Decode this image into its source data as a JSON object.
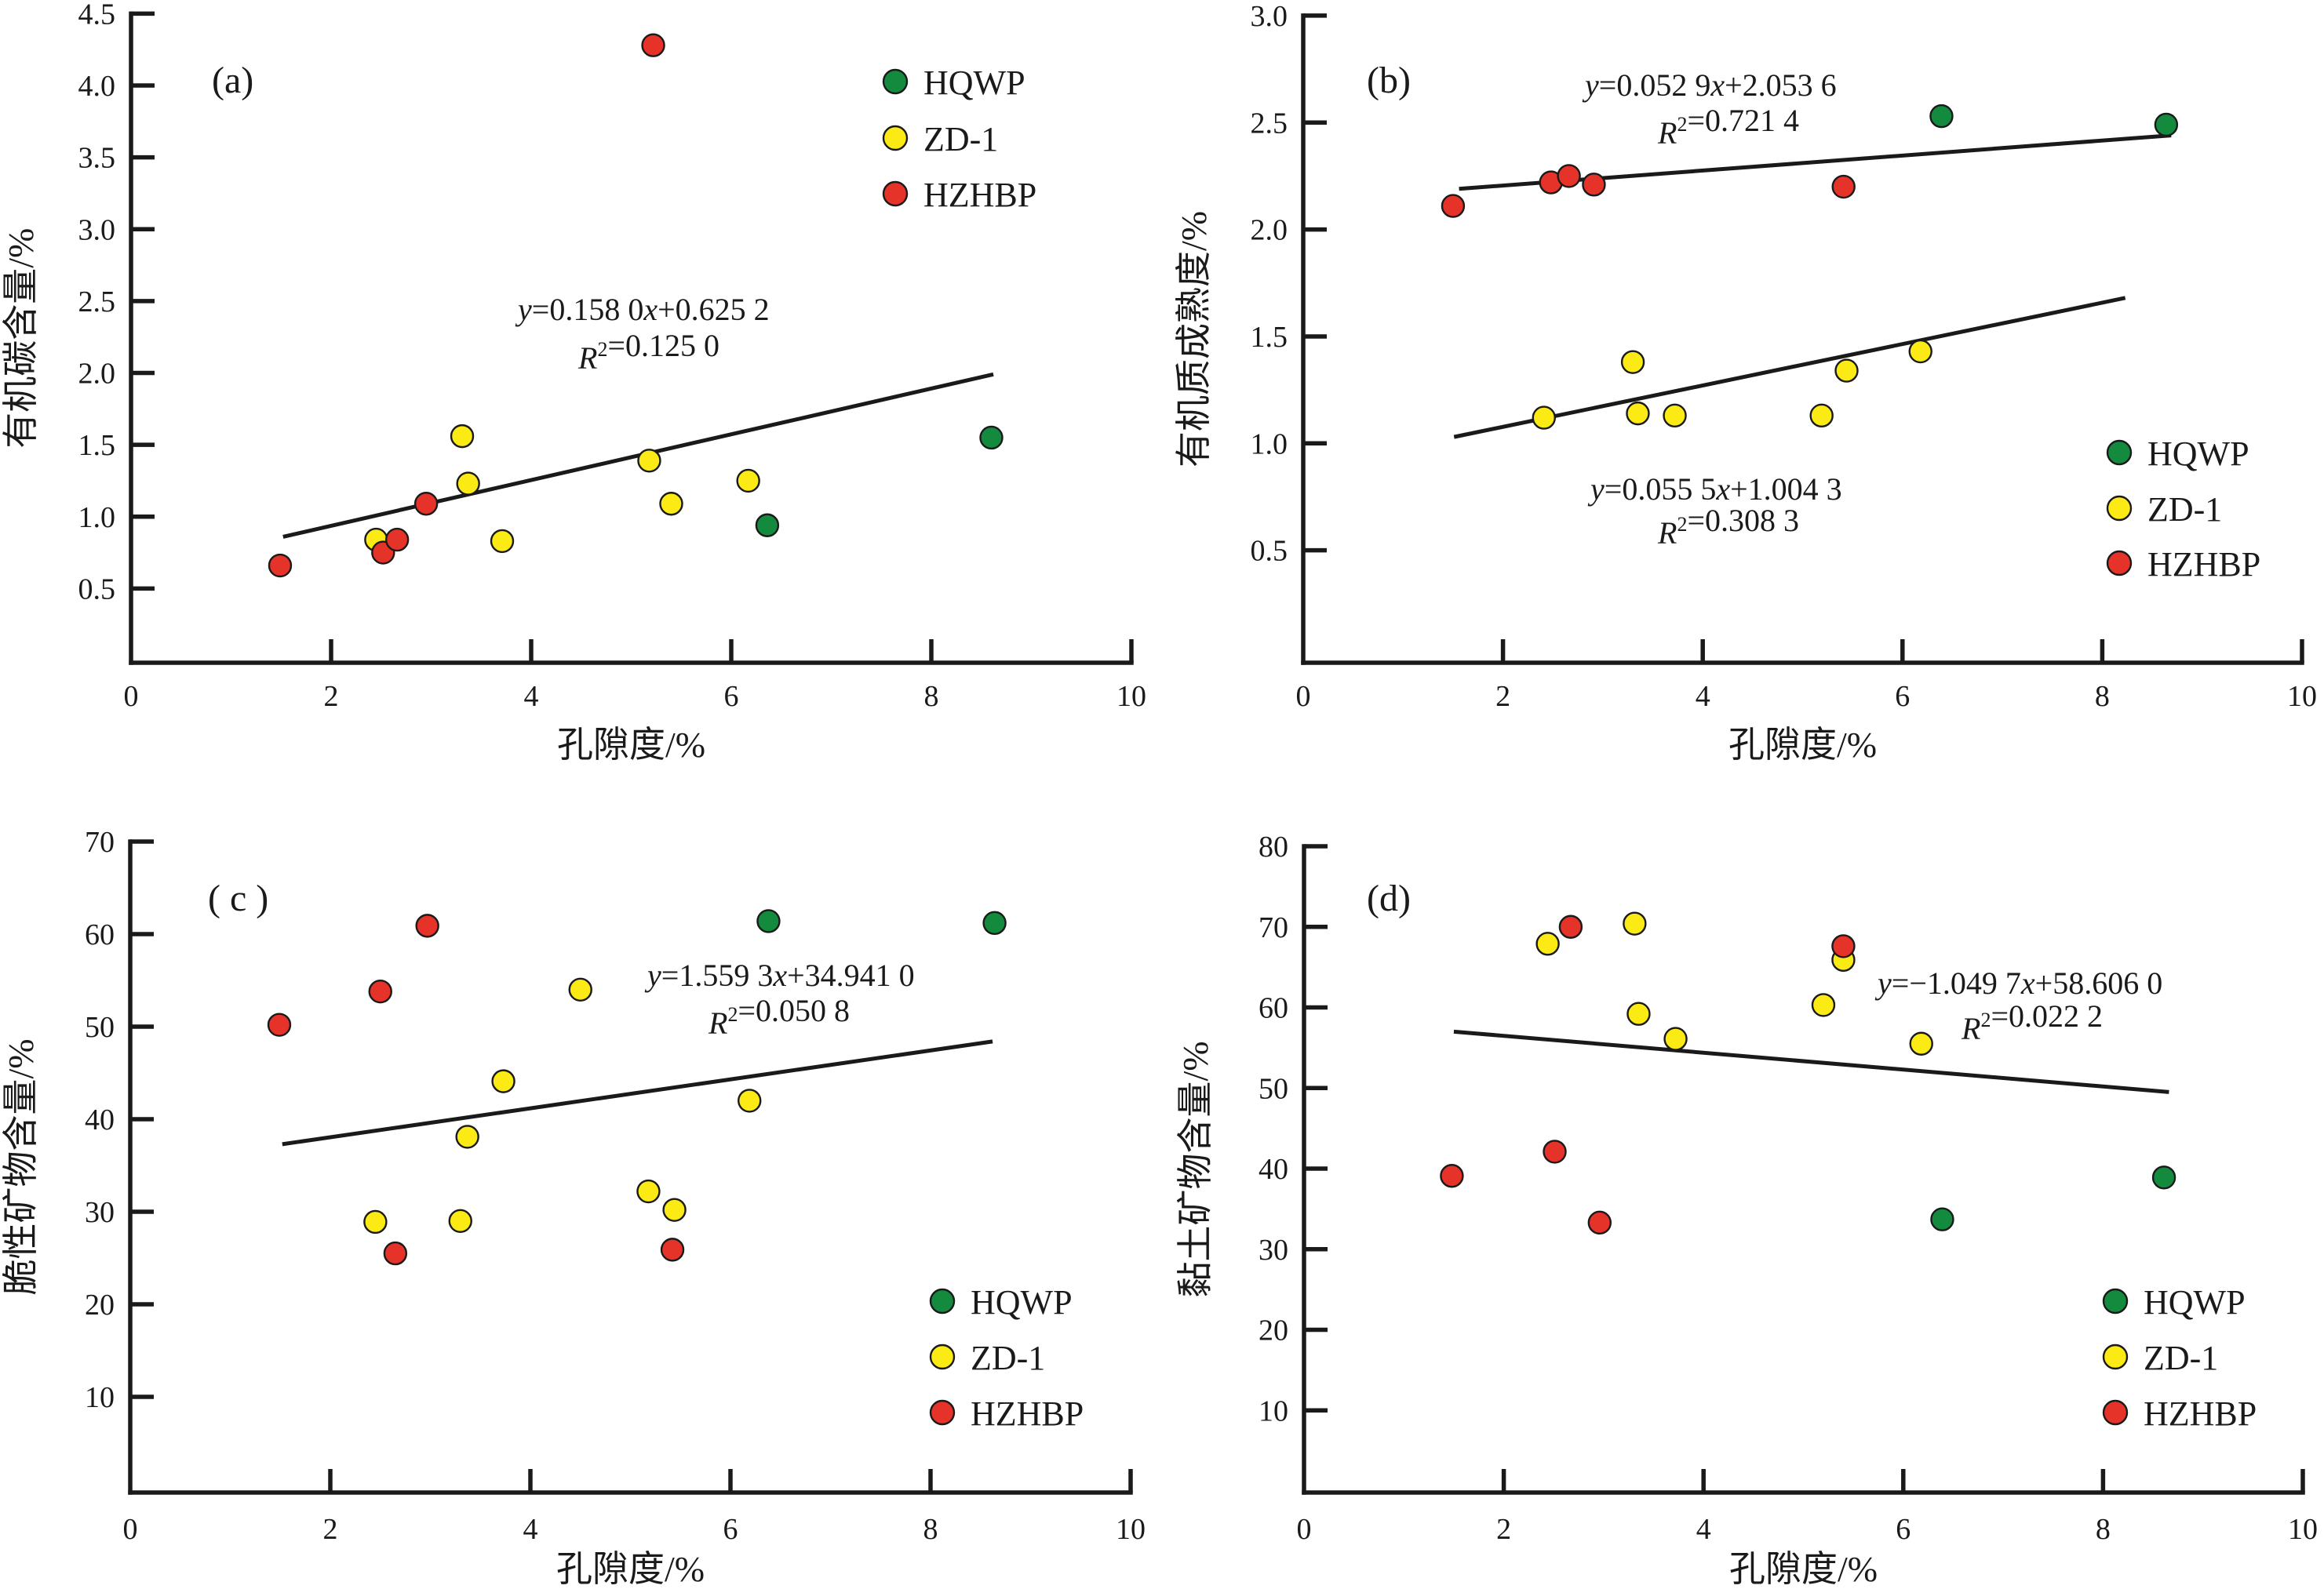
{
  "figure": {
    "x_axis_title": "孔隙度/%",
    "series_colors": {
      "HQWP": "#138a3e",
      "ZD-1": "#fbea13",
      "HZHBP": "#e5332a"
    },
    "marker_outline": "#1a1a1a"
  },
  "chart_data": [
    {
      "type": "scatter",
      "panel_label": "(a)",
      "title": "",
      "xlabel": "孔隙度/%",
      "ylabel": "有机碳含量/%",
      "xlim": [
        0,
        10
      ],
      "ylim": [
        0,
        4.5
      ],
      "x_ticks": [
        0,
        2,
        4,
        6,
        8,
        10
      ],
      "y_ticks": [
        0.5,
        1.0,
        1.5,
        2.0,
        2.5,
        3.0,
        3.5,
        4.0,
        4.5
      ],
      "y_tick_labels": [
        "0.5",
        "1.0",
        "1.5",
        "2.0",
        "2.5",
        "3.0",
        "3.5",
        "4.0",
        "4.5"
      ],
      "grid": false,
      "legend": {
        "placement": "top-right",
        "entries": [
          "HQWP",
          "ZD-1",
          "HZHBP"
        ]
      },
      "series": [
        {
          "name": "HQWP",
          "points": [
            [
              8.6,
              1.55
            ],
            [
              6.36,
              0.94
            ]
          ]
        },
        {
          "name": "ZD-1",
          "points": [
            [
              3.31,
              1.56
            ],
            [
              3.37,
              1.23
            ],
            [
              5.18,
              1.39
            ],
            [
              5.4,
              1.09
            ],
            [
              6.17,
              1.25
            ],
            [
              3.71,
              0.83
            ],
            [
              2.45,
              0.84
            ]
          ]
        },
        {
          "name": "HZHBP",
          "points": [
            [
              5.22,
              4.28
            ],
            [
              1.49,
              0.66
            ],
            [
              2.52,
              0.75
            ],
            [
              2.66,
              0.84
            ],
            [
              2.95,
              1.09
            ]
          ]
        }
      ],
      "fits": [
        {
          "equation": "y=0.158 0x+0.625 2",
          "r2": "R²=0.125 0",
          "slope": 0.158,
          "intercept": 0.6252,
          "line": [
            [
              1.52,
              0.86
            ],
            [
              8.62,
              1.99
            ]
          ]
        }
      ]
    },
    {
      "type": "scatter",
      "panel_label": "(b)",
      "title": "",
      "xlabel": "孔隙度/%",
      "ylabel": "有机质成熟度/%",
      "xlim": [
        0,
        10
      ],
      "ylim": [
        0,
        3.0
      ],
      "x_ticks": [
        0,
        2,
        4,
        6,
        8,
        10
      ],
      "y_ticks": [
        0.5,
        1.0,
        1.5,
        2.0,
        2.5,
        3.0
      ],
      "y_tick_labels": [
        "0.5",
        "1.0",
        "1.5",
        "2.0",
        "2.5",
        "3.0"
      ],
      "grid": false,
      "legend": {
        "placement": "bottom-right",
        "entries": [
          "HQWP",
          "ZD-1",
          "HZHBP"
        ]
      },
      "series": [
        {
          "name": "HQWP",
          "points": [
            [
              6.39,
              2.53
            ],
            [
              8.64,
              2.49
            ]
          ]
        },
        {
          "name": "ZD-1",
          "points": [
            [
              2.41,
              1.12
            ],
            [
              3.3,
              1.38
            ],
            [
              3.35,
              1.14
            ],
            [
              3.72,
              1.13
            ],
            [
              5.19,
              1.13
            ],
            [
              5.44,
              1.34
            ],
            [
              6.18,
              1.43
            ]
          ]
        },
        {
          "name": "HZHBP",
          "points": [
            [
              1.5,
              2.11
            ],
            [
              2.48,
              2.22
            ],
            [
              2.66,
              2.25
            ],
            [
              2.91,
              2.21
            ],
            [
              5.41,
              2.2
            ]
          ]
        }
      ],
      "fits": [
        {
          "equation": "y=0.052 9x+2.053 6",
          "r2": "R²=0.721 4",
          "slope": 0.0529,
          "intercept": 2.0536,
          "line": [
            [
              1.56,
              2.19
            ],
            [
              8.69,
              2.44
            ]
          ]
        },
        {
          "equation": "y=0.055 5x+1.004 3",
          "r2": "R²=0.308 3",
          "slope": 0.0555,
          "intercept": 1.0043,
          "line": [
            [
              1.51,
              1.03
            ],
            [
              8.23,
              1.68
            ]
          ]
        }
      ]
    },
    {
      "type": "scatter",
      "panel_label": "( c )",
      "title": "",
      "xlabel": "孔隙度/%",
      "ylabel": "脆性矿物含量/%",
      "xlim": [
        0,
        10
      ],
      "ylim": [
        0,
        70
      ],
      "x_ticks": [
        0,
        2,
        4,
        6,
        8,
        10
      ],
      "y_ticks": [
        10,
        20,
        30,
        40,
        50,
        60,
        70
      ],
      "y_tick_labels": [
        "10",
        "20",
        "30",
        "40",
        "50",
        "60",
        "70"
      ],
      "grid": false,
      "legend": {
        "placement": "bottom-right",
        "entries": [
          "HQWP",
          "ZD-1",
          "HZHBP"
        ]
      },
      "series": [
        {
          "name": "HQWP",
          "points": [
            [
              6.38,
              61.4
            ],
            [
              8.64,
              61.2
            ]
          ]
        },
        {
          "name": "ZD-1",
          "points": [
            [
              4.5,
              54.0
            ],
            [
              3.73,
              44.1
            ],
            [
              3.37,
              38.1
            ],
            [
              6.19,
              42.0
            ],
            [
              5.18,
              32.2
            ],
            [
              5.44,
              30.2
            ],
            [
              2.45,
              28.9
            ],
            [
              3.3,
              29.0
            ]
          ]
        },
        {
          "name": "HZHBP",
          "points": [
            [
              1.49,
              50.2
            ],
            [
              2.5,
              53.8
            ],
            [
              2.97,
              60.9
            ],
            [
              2.65,
              25.5
            ],
            [
              5.42,
              25.9
            ]
          ]
        }
      ],
      "fits": [
        {
          "equation": "y=1.559 3x+34.941 0",
          "r2": "R²=0.050 8",
          "slope": 1.5593,
          "intercept": 34.941,
          "line": [
            [
              1.52,
              37.3
            ],
            [
              8.62,
              48.4
            ]
          ]
        }
      ]
    },
    {
      "type": "scatter",
      "panel_label": "(d)",
      "title": "",
      "xlabel": "孔隙度/%",
      "ylabel": "黏土矿物含量/%",
      "xlim": [
        0,
        10
      ],
      "ylim": [
        0,
        80
      ],
      "x_ticks": [
        0,
        2,
        4,
        6,
        8,
        10
      ],
      "y_ticks": [
        10,
        20,
        30,
        40,
        50,
        60,
        70,
        80
      ],
      "y_tick_labels": [
        "10",
        "20",
        "30",
        "40",
        "50",
        "60",
        "70",
        "80"
      ],
      "grid": false,
      "legend": {
        "placement": "bottom-right",
        "entries": [
          "HQWP",
          "ZD-1",
          "HZHBP"
        ]
      },
      "series": [
        {
          "name": "HQWP",
          "points": [
            [
              6.39,
              33.7
            ],
            [
              8.61,
              38.9
            ]
          ]
        },
        {
          "name": "ZD-1",
          "points": [
            [
              2.44,
              67.9
            ],
            [
              3.31,
              70.4
            ],
            [
              3.35,
              59.2
            ],
            [
              3.72,
              56.1
            ],
            [
              5.2,
              60.3
            ],
            [
              5.4,
              65.9
            ],
            [
              6.18,
              55.5
            ]
          ]
        },
        {
          "name": "HZHBP",
          "points": [
            [
              1.48,
              39.1
            ],
            [
              2.51,
              42.1
            ],
            [
              2.67,
              70.0
            ],
            [
              2.96,
              33.3
            ],
            [
              5.4,
              67.6
            ]
          ]
        }
      ],
      "fits": [
        {
          "equation": "y=−1.049 7x+58.606 0",
          "r2": "R²=0.022 2",
          "slope": -1.0497,
          "intercept": 58.606,
          "line": [
            [
              1.5,
              57.0
            ],
            [
              8.66,
              49.5
            ]
          ]
        }
      ]
    }
  ]
}
